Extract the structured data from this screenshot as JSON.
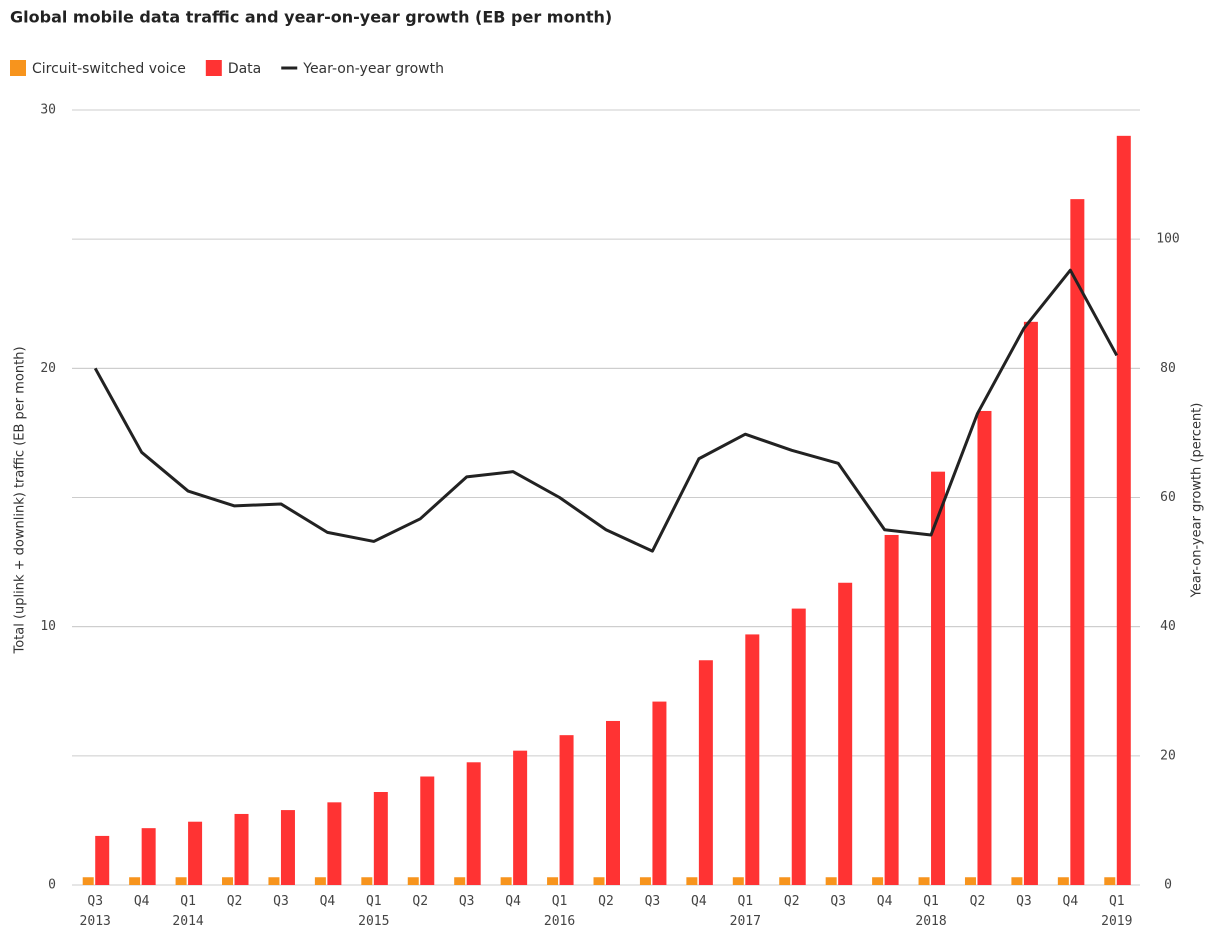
{
  "chart_data": {
    "type": "bar_line",
    "title": "Global mobile data traffic and year-on-year growth (EB per month)",
    "y_label": "Total (uplink + downlink) traffic (EB per month)",
    "y2_label": "Year-on-year growth (percent)",
    "categories": [
      "Q3 2013",
      "Q4",
      "Q1 2014",
      "Q2",
      "Q3",
      "Q4",
      "Q1 2015",
      "Q2",
      "Q3",
      "Q4",
      "Q1 2016",
      "Q2",
      "Q3",
      "Q4",
      "Q1 2017",
      "Q2",
      "Q3",
      "Q4",
      "Q1 2018",
      "Q2",
      "Q3",
      "Q4",
      "Q1 2019"
    ],
    "series": [
      {
        "name": "Circuit-switched voice",
        "type": "bar",
        "color": "#f7941d",
        "values": [
          0.3,
          0.3,
          0.3,
          0.3,
          0.3,
          0.3,
          0.3,
          0.3,
          0.3,
          0.3,
          0.3,
          0.3,
          0.3,
          0.3,
          0.3,
          0.3,
          0.3,
          0.3,
          0.3,
          0.3,
          0.3,
          0.3,
          0.3
        ]
      },
      {
        "name": "Data",
        "type": "bar",
        "color": "#ff3333",
        "values": [
          1.9,
          2.2,
          2.45,
          2.75,
          2.9,
          3.2,
          3.6,
          4.2,
          4.75,
          5.2,
          5.8,
          6.35,
          7.1,
          8.7,
          9.7,
          10.7,
          11.7,
          13.55,
          16.0,
          18.35,
          21.8,
          26.55,
          29.0
        ]
      },
      {
        "name": "Year-on-year growth",
        "type": "line",
        "axis": "y2",
        "color": "#222222",
        "values": [
          80,
          67,
          61,
          58.7,
          59,
          54.6,
          53.2,
          56.7,
          63.2,
          64,
          60,
          55,
          51.7,
          66,
          69.8,
          67.3,
          65.3,
          55,
          54.2,
          73,
          86.2,
          95.2,
          82
        ]
      }
    ],
    "ylim": [
      0,
      30
    ],
    "yticks": [
      0,
      10,
      20,
      30
    ],
    "y2lim": [
      0,
      120
    ],
    "y2ticks": [
      0,
      20,
      40,
      60,
      80,
      100
    ],
    "grid": true
  }
}
